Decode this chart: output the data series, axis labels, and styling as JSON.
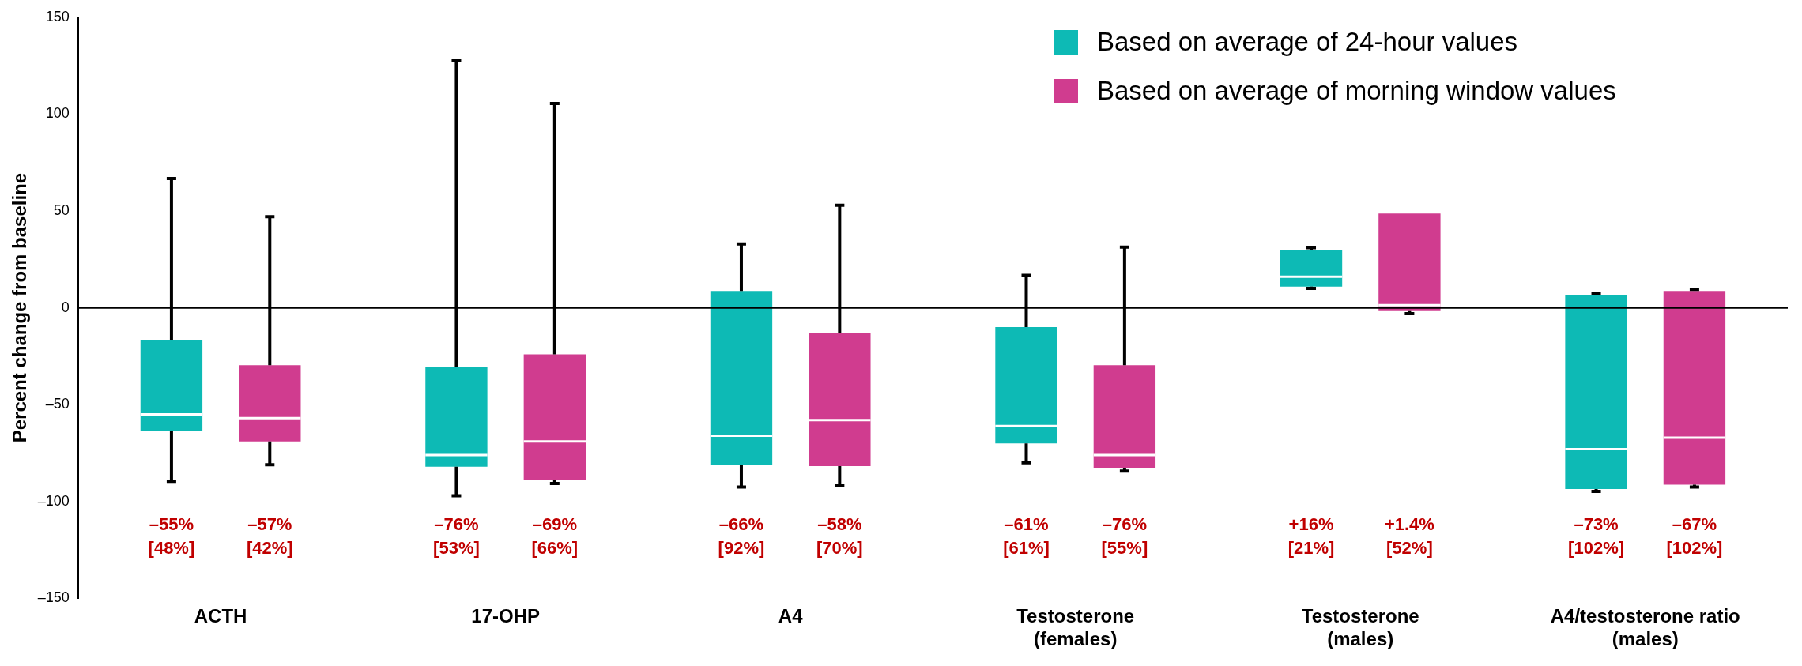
{
  "chart_data": {
    "type": "box",
    "ylabel": "Percent change from baseline",
    "categories": [
      "ACTH",
      "17-OHP",
      "A4",
      "Testosterone\n(females)",
      "Testosterone\n(males)",
      "A4/testosterone ratio\n(males)"
    ],
    "series": [
      {
        "name": "Based on average of 24-hour values",
        "color": "#0dbab5",
        "boxes": [
          {
            "low": -89.6,
            "q1": -63.5,
            "median": -55,
            "q3": -16.5,
            "high": 66.7
          },
          {
            "low": -97,
            "q1": -82,
            "median": -76,
            "q3": -30.7,
            "high": 127.5
          },
          {
            "low": -92.5,
            "q1": -81,
            "median": -66,
            "q3": 8.7,
            "high": 33
          },
          {
            "low": -80,
            "q1": -70,
            "median": -61,
            "q3": -10,
            "high": 16.8
          },
          {
            "low": 10,
            "q1": 11,
            "median": 16,
            "q3": 30,
            "high": 31
          },
          {
            "low": -94.8,
            "q1": -93.6,
            "median": -73,
            "q3": 6.7,
            "high": 7.5
          }
        ],
        "value_labels": [
          "–55%\n[48%]",
          "–76%\n[53%]",
          "–66%\n[92%]",
          "–61%\n[61%]",
          "+16%\n[21%]",
          "–73%\n[102%]"
        ]
      },
      {
        "name": "Based on average of morning window values",
        "color": "#d03c8f",
        "boxes": [
          {
            "low": -81,
            "q1": -69,
            "median": -57,
            "q3": -29.6,
            "high": 47
          },
          {
            "low": -90.7,
            "q1": -88.7,
            "median": -69,
            "q3": -24,
            "high": 105.5
          },
          {
            "low": -91.6,
            "q1": -81.7,
            "median": -58,
            "q3": -13,
            "high": 53
          },
          {
            "low": -84.3,
            "q1": -83,
            "median": -76,
            "q3": -29.6,
            "high": 31.3
          },
          {
            "low": -3,
            "q1": -1.7,
            "median": 1.4,
            "q3": 48.7,
            "high": 48.7
          },
          {
            "low": -92.5,
            "q1": -91.3,
            "median": -67,
            "q3": 8.7,
            "high": 9.5
          }
        ],
        "value_labels": [
          "–57%\n[42%]",
          "–69%\n[66%]",
          "–58%\n[70%]",
          "–76%\n[55%]",
          "+1.4%\n[52%]",
          "–67%\n[102%]"
        ]
      }
    ],
    "ylim": [
      -150,
      150
    ],
    "yticks": [
      {
        "value": -150,
        "label": "–150"
      },
      {
        "value": -100,
        "label": "–100"
      },
      {
        "value": -50,
        "label": "–50"
      },
      0,
      50,
      100,
      150
    ],
    "ref_lines": [
      {
        "axis": "y",
        "value": 0,
        "color": "#000000"
      }
    ],
    "legend": "top right"
  }
}
